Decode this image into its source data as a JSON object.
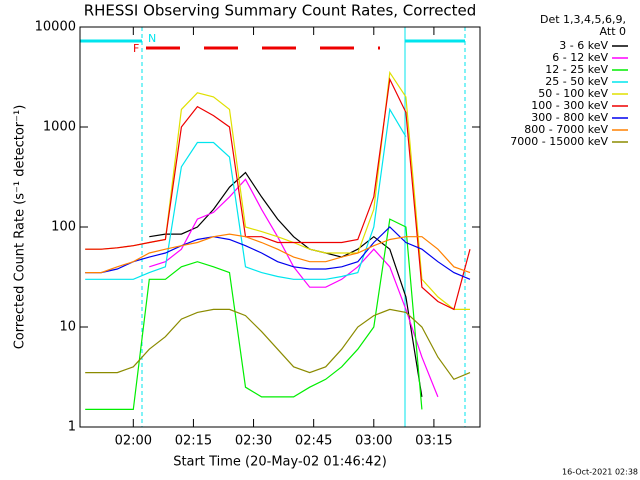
{
  "chart_data": {
    "type": "line",
    "title": "RHESSI Observing Summary Count Rates, Corrected",
    "x_label": "Start Time (20-May-02 01:46:42)",
    "y_label": "Corrected Count Rate (s⁻¹ detector⁻¹)",
    "legend_header": [
      "Det 1,3,4,5,6,9,",
      "Att 0"
    ],
    "footer": "16-Oct-2021 02:38",
    "annotations": [
      "N",
      "F"
    ],
    "log_y": true,
    "xlim": [
      "01:46:42",
      "03:26:30"
    ],
    "xticks": [
      "02:00",
      "02:15",
      "02:30",
      "02:45",
      "03:00",
      "03:15"
    ],
    "ylim": [
      1,
      10000
    ],
    "yticks": [
      1,
      10,
      100,
      1000,
      10000
    ],
    "x": [
      "01:48",
      "01:52",
      "01:56",
      "02:00",
      "02:04",
      "02:08",
      "02:12",
      "02:16",
      "02:20",
      "02:24",
      "02:28",
      "02:32",
      "02:36",
      "02:40",
      "02:44",
      "02:48",
      "02:52",
      "02:56",
      "03:00",
      "03:04",
      "03:08",
      "03:12",
      "03:16",
      "03:20",
      "03:24"
    ],
    "series": [
      {
        "name": "3 - 6 keV",
        "color": "#000000",
        "values": [
          null,
          null,
          null,
          null,
          80,
          85,
          85,
          100,
          150,
          250,
          350,
          200,
          120,
          80,
          60,
          55,
          50,
          60,
          80,
          60,
          20,
          2,
          null,
          null,
          null
        ]
      },
      {
        "name": "6 - 12 keV",
        "color": "#ff00ff",
        "values": [
          null,
          null,
          null,
          null,
          40,
          45,
          60,
          120,
          140,
          200,
          300,
          150,
          80,
          40,
          25,
          25,
          30,
          40,
          60,
          40,
          15,
          5,
          2,
          null,
          null
        ]
      },
      {
        "name": "12 - 25 keV",
        "color": "#00ee00",
        "values": [
          1.5,
          1.5,
          1.5,
          1.5,
          30,
          30,
          40,
          45,
          40,
          35,
          2.5,
          2,
          2,
          2,
          2.5,
          3,
          4,
          6,
          10,
          120,
          100,
          1.5,
          null,
          null,
          null
        ]
      },
      {
        "name": "25 - 50 keV",
        "color": "#00e5ee",
        "values": [
          30,
          30,
          30,
          30,
          35,
          40,
          400,
          700,
          700,
          500,
          40,
          35,
          32,
          30,
          30,
          30,
          32,
          35,
          100,
          1500,
          800,
          null,
          null,
          null,
          null
        ]
      },
      {
        "name": "50 - 100 keV",
        "color": "#e0e000",
        "values": [
          60,
          60,
          62,
          65,
          70,
          75,
          1500,
          2200,
          2000,
          1500,
          100,
          90,
          80,
          70,
          60,
          55,
          55,
          55,
          150,
          3500,
          2000,
          30,
          20,
          15,
          15
        ]
      },
      {
        "name": "100 - 300 keV",
        "color": "#ee0000",
        "values": [
          60,
          60,
          62,
          65,
          70,
          75,
          1000,
          1600,
          1300,
          1000,
          80,
          80,
          70,
          70,
          70,
          70,
          70,
          75,
          200,
          3000,
          1400,
          25,
          18,
          15,
          60
        ]
      },
      {
        "name": "300 - 800 keV",
        "color": "#0000ee",
        "values": [
          35,
          35,
          38,
          45,
          50,
          55,
          65,
          75,
          80,
          75,
          65,
          55,
          45,
          40,
          38,
          38,
          40,
          45,
          70,
          100,
          70,
          60,
          45,
          35,
          30
        ]
      },
      {
        "name": "800 - 7000 keV",
        "color": "#ff8000",
        "values": [
          35,
          35,
          40,
          45,
          55,
          60,
          65,
          70,
          80,
          85,
          80,
          70,
          60,
          50,
          45,
          45,
          50,
          55,
          65,
          75,
          80,
          80,
          60,
          40,
          35
        ]
      },
      {
        "name": "7000 - 15000 keV",
        "color": "#8b8b00",
        "values": [
          3.5,
          3.5,
          3.5,
          4,
          6,
          8,
          12,
          14,
          15,
          15,
          13,
          9,
          6,
          4,
          3.5,
          4,
          6,
          10,
          13,
          15,
          14,
          10,
          5,
          3,
          3.5
        ]
      }
    ]
  }
}
